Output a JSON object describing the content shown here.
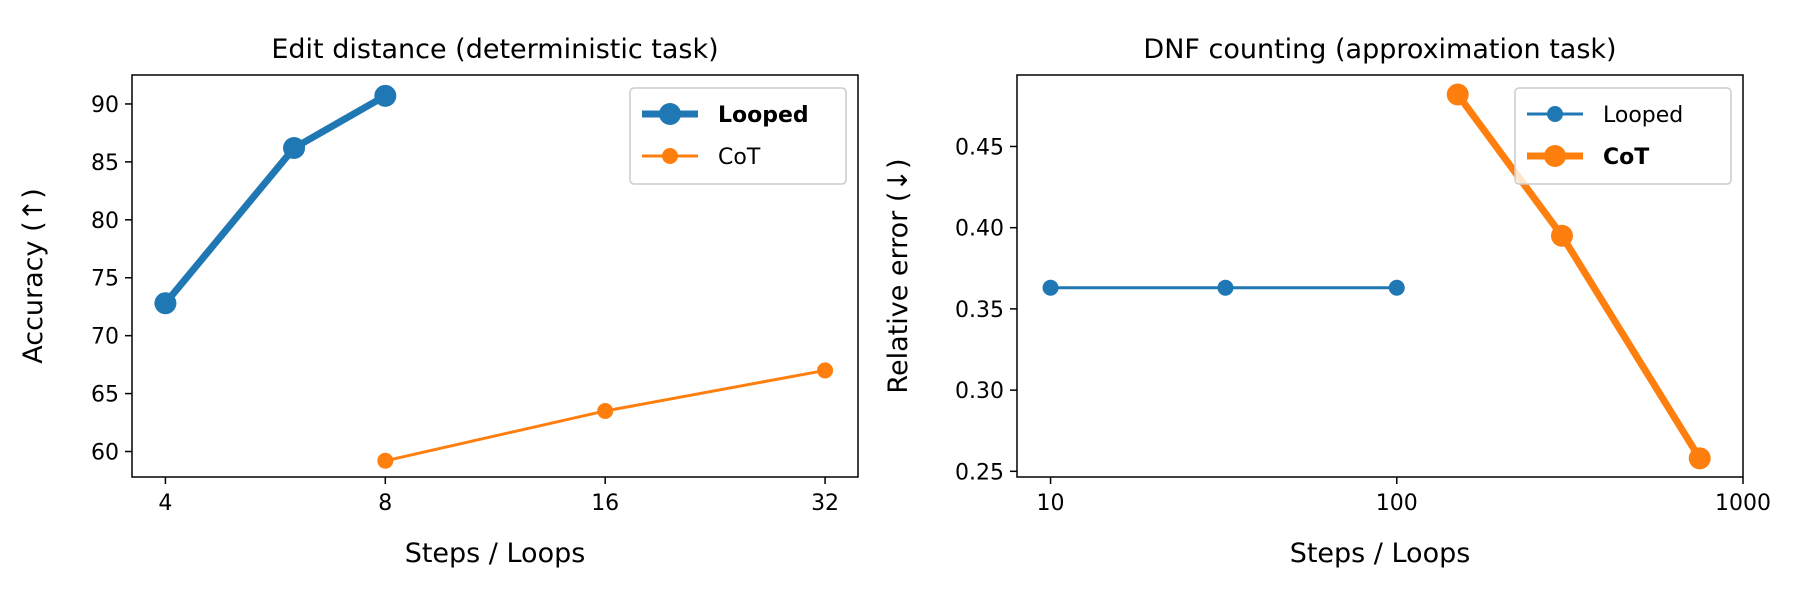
{
  "chart_data": [
    {
      "type": "line",
      "title": "Edit distance (deterministic task)",
      "xlabel": "Steps / Loops",
      "ylabel": "Accuracy (↑)",
      "xscale": "log2",
      "xlim": [
        3.6,
        35.5
      ],
      "ylim": [
        57.8,
        92.5
      ],
      "xticks": [
        4,
        8,
        16,
        32
      ],
      "xtick_labels": [
        "4",
        "8",
        "16",
        "32"
      ],
      "yticks": [
        60,
        65,
        70,
        75,
        80,
        85,
        90
      ],
      "ytick_labels": [
        "60",
        "65",
        "70",
        "75",
        "80",
        "85",
        "90"
      ],
      "grid": false,
      "legend_position": "top-right",
      "series": [
        {
          "name": "Looped",
          "color": "#1f77b4",
          "highlight": true,
          "x": [
            4,
            6,
            8
          ],
          "y": [
            72.8,
            86.2,
            90.7
          ]
        },
        {
          "name": "CoT",
          "color": "#ff7f0e",
          "highlight": false,
          "x": [
            8,
            16,
            32
          ],
          "y": [
            59.2,
            63.5,
            67.0
          ]
        }
      ]
    },
    {
      "type": "line",
      "title": "DNF counting (approximation task)",
      "xlabel": "Steps / Loops",
      "ylabel": "Relative error (↓)",
      "xscale": "log10",
      "xlim": [
        8.0,
        1000
      ],
      "ylim": [
        0.2465,
        0.494
      ],
      "xticks": [
        10,
        100,
        1000
      ],
      "xtick_labels": [
        "10",
        "100",
        "1000"
      ],
      "yticks": [
        0.25,
        0.3,
        0.35,
        0.4,
        0.45
      ],
      "ytick_labels": [
        "0.25",
        "0.30",
        "0.35",
        "0.40",
        "0.45"
      ],
      "grid": false,
      "legend_position": "top-right",
      "series": [
        {
          "name": "Looped",
          "color": "#1f77b4",
          "highlight": false,
          "x": [
            10,
            32,
            100
          ],
          "y": [
            0.363,
            0.363,
            0.363
          ]
        },
        {
          "name": "CoT",
          "color": "#ff7f0e",
          "highlight": true,
          "x": [
            150,
            300,
            750
          ],
          "y": [
            0.482,
            0.395,
            0.258
          ]
        }
      ]
    }
  ]
}
